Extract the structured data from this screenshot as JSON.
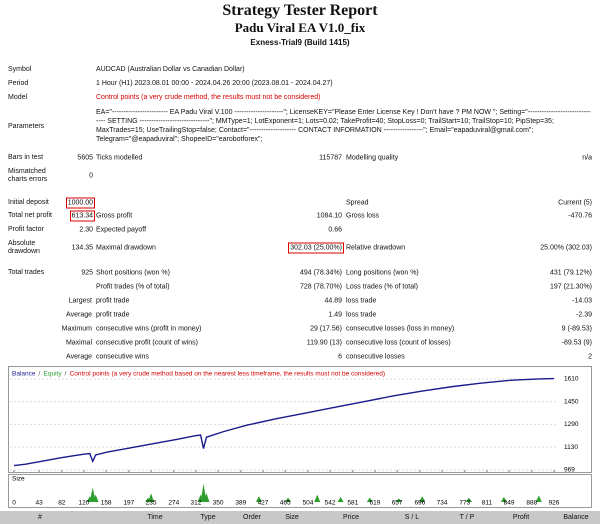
{
  "header": {
    "title": "Strategy Tester Report",
    "subtitle": "Padu Viral EA V1.0_fix",
    "build": "Exness-Trial9 (Build 1415)"
  },
  "info": [
    {
      "label": "Symbol",
      "value": "AUDCAD (Australian Dollar vs Canadian Dollar)"
    },
    {
      "label": "Period",
      "value": "1 Hour (H1) 2023.08.01 00:00 - 2024.04.26 20:00 (2023.08.01 - 2024.04.27)"
    },
    {
      "label": "Model",
      "value": "Control points (a very crude method, the results must not be considered)",
      "color": "#d40000"
    },
    {
      "label": "Parameters",
      "value": "EA=\"------------------------ EA Padu Viral V.100 ---------------------\"; LicenseKEY=\"Please Enter License Key ! Don't have ? PM NOW \"; Setting=\"------------------------------- SETTING ------------------------------\"; MMType=1; LotExponent=1; Lots=0.02; TakeProfit=40; StopLoss=0; TrailStart=10; TrailStop=10; PipStep=35; MaxTrades=15; UseTrailingStop=false; Contact=\"-------------------- CONTACT INFORMATION -----------------\"; Email=\"eapaduviral@gmail.com\"; Telegram=\"@eapaduviral\"; ShopeeID=\"earobotforex\";"
    }
  ],
  "stats": [
    [
      "Bars in test",
      "5605",
      "Ticks modelled",
      "115787",
      "Modelling quality",
      "n/a"
    ],
    [
      "Mismatched charts errors",
      "0",
      null,
      null,
      null,
      null
    ],
    [
      "Initial deposit",
      "1000.00",
      null,
      null,
      "Spread",
      "Current (5)"
    ],
    [
      "Total net profit",
      "613.34",
      "Gross profit",
      "1084.10",
      "Gross loss",
      "-470.76"
    ],
    [
      "Profit factor",
      "2.30",
      "Expected payoff",
      "0.66",
      null,
      null
    ],
    [
      "Absolute drawdown",
      "134.35",
      "Maximal drawdown",
      "302.03 (25.00%)",
      "Relative drawdown",
      "25.00% (302.03)"
    ],
    [
      "Total trades",
      "925",
      "Short positions (won %)",
      "494 (78.34%)",
      "Long positions (won %)",
      "431 (79.12%)"
    ],
    [
      null,
      null,
      "Profit trades (% of total)",
      "728 (78.70%)",
      "Loss trades (% of total)",
      "197 (21.30%)"
    ],
    [
      "Largest",
      null,
      "profit trade",
      "44.89",
      "loss trade",
      "-14.03"
    ],
    [
      "Average",
      null,
      "profit trade",
      "1.49",
      "loss trade",
      "-2.39"
    ],
    [
      "Maximum",
      null,
      "consecutive wins (profit in money)",
      "29 (17.56)",
      "consecutive losses (loss in money)",
      "9 (-89.53)"
    ],
    [
      "Maximal",
      null,
      "consecutive profit (count of wins)",
      "119.90 (13)",
      "consecutive loss (count of losses)",
      "-89.53 (9)"
    ],
    [
      "Average",
      null,
      "consecutive wins",
      "6",
      "consecutive losses",
      "2"
    ]
  ],
  "highlighted_cells": [
    [
      2,
      1
    ],
    [
      3,
      1
    ],
    [
      5,
      3
    ]
  ],
  "graph": {
    "legend": [
      {
        "name": "Balance",
        "color": "#1a1a8c"
      },
      {
        "name": "Equity",
        "color": "#2e9e2e"
      },
      {
        "name": "Control points (a very crude method based on the nearest less timeframe, the results must not be considered)",
        "color": "#d40000"
      }
    ],
    "ylim": [
      955,
      1687
    ],
    "yticks": [
      969,
      1130,
      1290,
      1450,
      1610
    ],
    "xlim": [
      0,
      926
    ],
    "xticks": [
      0,
      43,
      82,
      120,
      158,
      197,
      235,
      274,
      312,
      350,
      389,
      427,
      465,
      504,
      542,
      581,
      619,
      657,
      696,
      734,
      773,
      811,
      849,
      888,
      926
    ],
    "x": [
      0,
      20,
      40,
      60,
      80,
      100,
      120,
      130,
      135,
      140,
      160,
      200,
      240,
      280,
      310,
      320,
      325,
      330,
      360,
      400,
      450,
      500,
      550,
      600,
      650,
      700,
      750,
      800,
      850,
      900,
      926
    ],
    "balance": [
      1000,
      1010,
      1025,
      1040,
      1055,
      1068,
      1080,
      1085,
      1030,
      1075,
      1095,
      1125,
      1155,
      1185,
      1210,
      1215,
      1120,
      1200,
      1240,
      1285,
      1330,
      1370,
      1410,
      1450,
      1490,
      1525,
      1555,
      1580,
      1600,
      1610,
      1613
    ],
    "size_label": "Size",
    "size_lim": [
      0,
      0.3
    ],
    "size_x": [
      130,
      135,
      140,
      230,
      235,
      320,
      325,
      330,
      420,
      470,
      520,
      560,
      610,
      660,
      700,
      780,
      840,
      900
    ],
    "size_values": [
      0.08,
      0.2,
      0.1,
      0.06,
      0.12,
      0.1,
      0.25,
      0.12,
      0.08,
      0.06,
      0.1,
      0.07,
      0.06,
      0.05,
      0.08,
      0.06,
      0.07,
      0.09
    ]
  },
  "table_header": [
    "#",
    "Time",
    "Type",
    "Order",
    "Size",
    "Price",
    "S / L",
    "T / P",
    "Profit",
    "Balance"
  ]
}
